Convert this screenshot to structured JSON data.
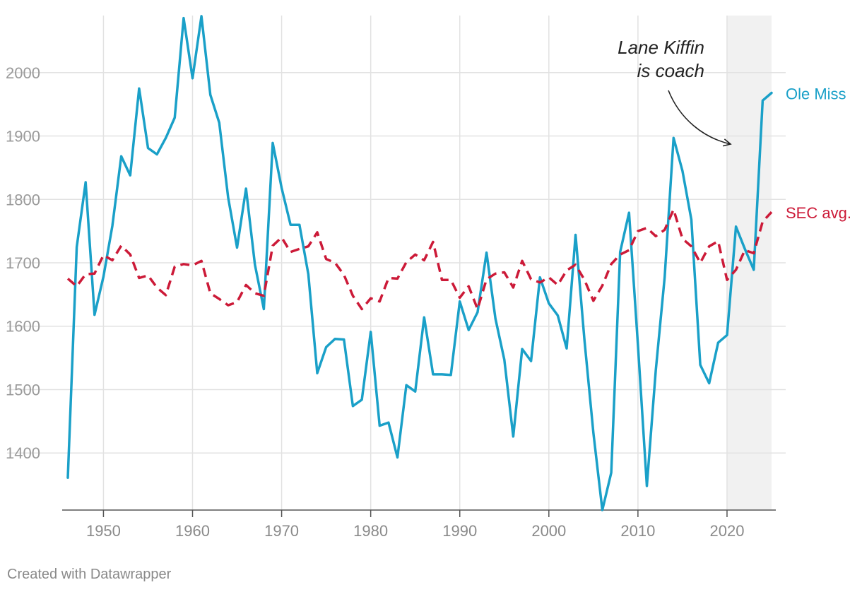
{
  "chart_data": {
    "type": "line",
    "title": "",
    "xlabel": "",
    "ylabel": "",
    "xlim": [
      1946,
      2025
    ],
    "ylim": [
      1310,
      2090
    ],
    "x_ticks": [
      1950,
      1960,
      1970,
      1980,
      1990,
      2000,
      2010,
      2020
    ],
    "y_ticks": [
      1400,
      1500,
      1600,
      1700,
      1800,
      1900,
      2000
    ],
    "grid": true,
    "highlight_range": [
      2020,
      2025
    ],
    "annotation": {
      "line1": "Lane Kiffin",
      "line2": "is coach"
    },
    "series": [
      {
        "name": "Ole Miss",
        "color": "#1aa0c8",
        "style": "solid",
        "x": [
          1946,
          1947,
          1948,
          1949,
          1950,
          1951,
          1952,
          1953,
          1954,
          1955,
          1956,
          1957,
          1958,
          1959,
          1960,
          1961,
          1962,
          1963,
          1964,
          1965,
          1966,
          1967,
          1968,
          1969,
          1970,
          1971,
          1972,
          1973,
          1974,
          1975,
          1976,
          1977,
          1978,
          1979,
          1980,
          1981,
          1982,
          1983,
          1984,
          1985,
          1986,
          1987,
          1988,
          1989,
          1990,
          1991,
          1992,
          1993,
          1994,
          1995,
          1996,
          1997,
          1998,
          1999,
          2000,
          2001,
          2002,
          2003,
          2004,
          2005,
          2006,
          2007,
          2008,
          2009,
          2010,
          2011,
          2012,
          2013,
          2014,
          2015,
          2016,
          2017,
          2018,
          2019,
          2020,
          2021,
          2022,
          2023,
          2024,
          2025
        ],
        "values": [
          1361,
          1725,
          1827,
          1618,
          1678,
          1758,
          1868,
          1838,
          1975,
          1881,
          1871,
          1897,
          1929,
          2086,
          1991,
          2089,
          1965,
          1921,
          1803,
          1724,
          1817,
          1697,
          1627,
          1889,
          1818,
          1760,
          1760,
          1682,
          1526,
          1567,
          1580,
          1579,
          1474,
          1484,
          1591,
          1443,
          1448,
          1393,
          1507,
          1497,
          1614,
          1524,
          1524,
          1523,
          1639,
          1594,
          1622,
          1716,
          1612,
          1547,
          1426,
          1564,
          1545,
          1677,
          1636,
          1617,
          1565,
          1744,
          1578,
          1432,
          1310,
          1369,
          1717,
          1779,
          1570,
          1348,
          1530,
          1677,
          1897,
          1845,
          1768,
          1539,
          1510,
          1574,
          1586,
          1757,
          1722,
          1689,
          1956,
          1968
        ]
      },
      {
        "name": "SEC avg.",
        "color": "#cc1a38",
        "style": "dashed",
        "x": [
          1946,
          1947,
          1948,
          1949,
          1950,
          1951,
          1952,
          1953,
          1954,
          1955,
          1956,
          1957,
          1958,
          1959,
          1960,
          1961,
          1962,
          1963,
          1964,
          1965,
          1966,
          1967,
          1968,
          1969,
          1970,
          1971,
          1972,
          1973,
          1974,
          1975,
          1976,
          1977,
          1978,
          1979,
          1980,
          1981,
          1982,
          1983,
          1984,
          1985,
          1986,
          1987,
          1988,
          1989,
          1990,
          1991,
          1992,
          1993,
          1994,
          1995,
          1996,
          1997,
          1998,
          1999,
          2000,
          2001,
          2002,
          2003,
          2004,
          2005,
          2006,
          2007,
          2008,
          2009,
          2010,
          2011,
          2012,
          2013,
          2014,
          2015,
          2016,
          2017,
          2018,
          2019,
          2020,
          2021,
          2022,
          2023,
          2024,
          2025
        ],
        "values": [
          1675,
          1663,
          1682,
          1683,
          1712,
          1704,
          1727,
          1713,
          1676,
          1680,
          1661,
          1649,
          1694,
          1698,
          1696,
          1703,
          1652,
          1643,
          1633,
          1638,
          1665,
          1652,
          1648,
          1727,
          1740,
          1717,
          1722,
          1726,
          1748,
          1706,
          1700,
          1681,
          1648,
          1627,
          1644,
          1639,
          1676,
          1675,
          1701,
          1713,
          1704,
          1733,
          1673,
          1673,
          1645,
          1663,
          1627,
          1674,
          1683,
          1685,
          1661,
          1703,
          1674,
          1669,
          1677,
          1665,
          1688,
          1697,
          1673,
          1640,
          1664,
          1698,
          1713,
          1720,
          1750,
          1755,
          1742,
          1752,
          1784,
          1738,
          1726,
          1700,
          1726,
          1734,
          1673,
          1689,
          1720,
          1715,
          1765,
          1780
        ]
      }
    ]
  },
  "footer": {
    "credit": "Created with Datawrapper"
  }
}
